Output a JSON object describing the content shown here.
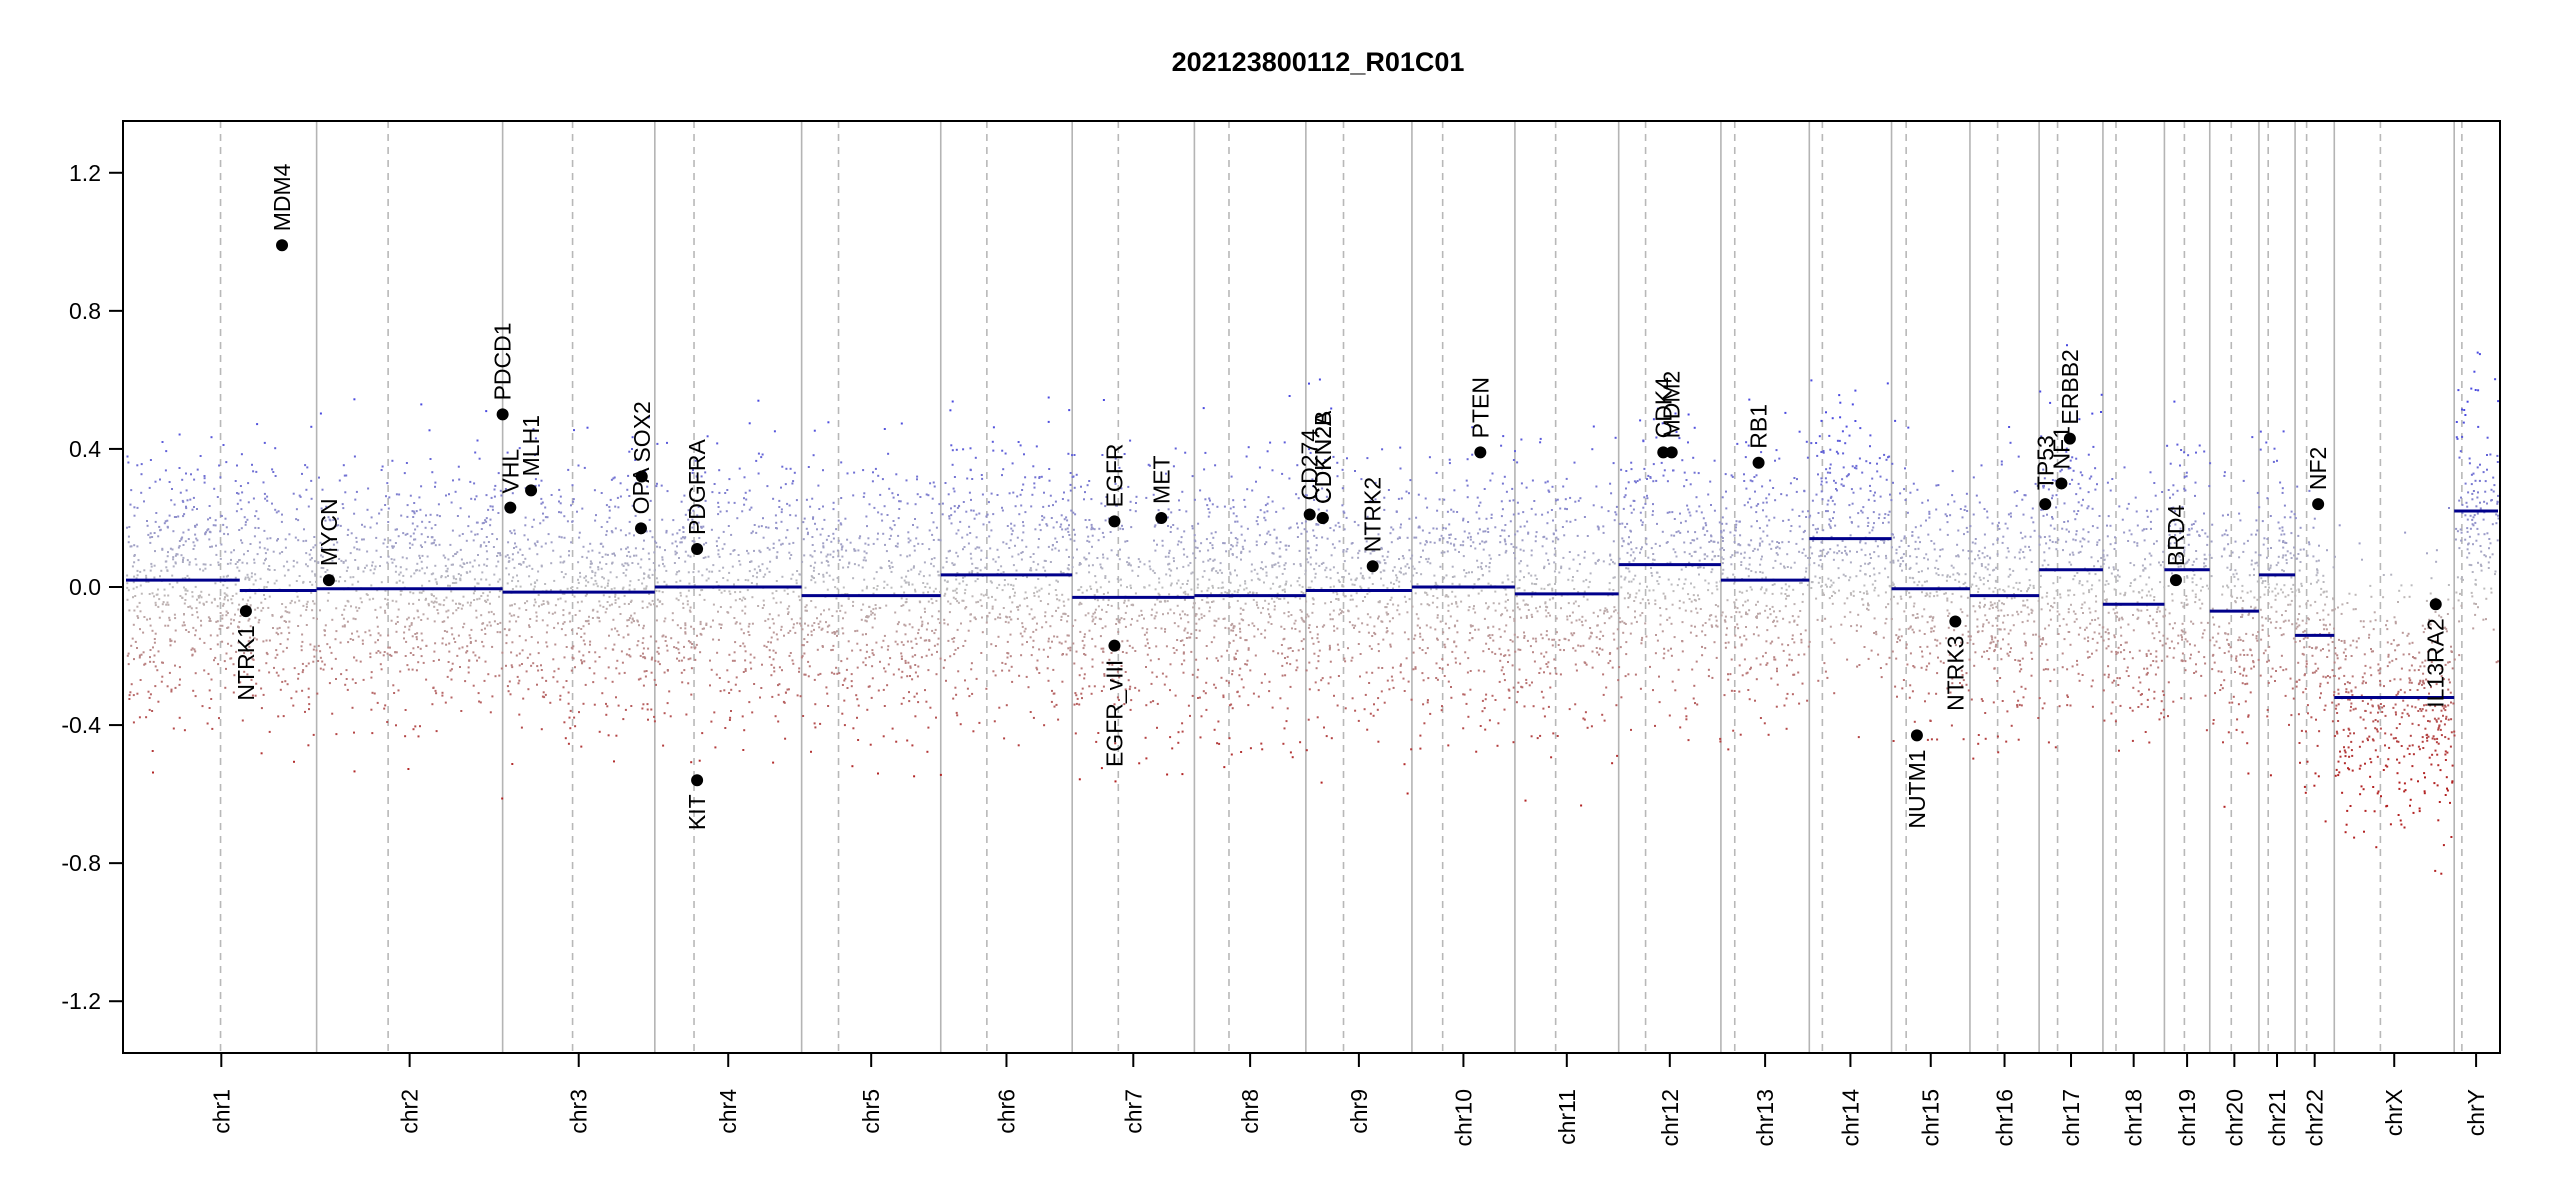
{
  "chart_data": {
    "type": "scatter",
    "title": "202123800112_R01C01",
    "xlabel": "",
    "ylabel": "",
    "ylim": [
      -1.35,
      1.35
    ],
    "yticks": [
      -1.2,
      -0.8,
      -0.4,
      0.0,
      0.4,
      0.8,
      1.2
    ],
    "ytick_labels": [
      "-1.2",
      "-0.8",
      "-0.4",
      "0.0",
      "0.4",
      "0.8",
      "1.2"
    ],
    "grid": false,
    "legend": "none",
    "colors": {
      "segment": "#00008b",
      "high": "#4a4adf",
      "low": "#b22222",
      "neutral": "#bdbdbd",
      "separator": "#b4b4b4",
      "centromere": "#b8b8b8"
    },
    "chromosomes": [
      {
        "name": "chr1",
        "start": 0,
        "end": 248,
        "centromere": 123
      },
      {
        "name": "chr2",
        "start": 248,
        "end": 490,
        "centromere": 93
      },
      {
        "name": "chr3",
        "start": 490,
        "end": 688,
        "centromere": 91
      },
      {
        "name": "chr4",
        "start": 688,
        "end": 879,
        "centromere": 51
      },
      {
        "name": "chr5",
        "start": 879,
        "end": 1060,
        "centromere": 48
      },
      {
        "name": "chr6",
        "start": 1060,
        "end": 1231,
        "centromere": 60
      },
      {
        "name": "chr7",
        "start": 1231,
        "end": 1390,
        "centromere": 60
      },
      {
        "name": "chr8",
        "start": 1390,
        "end": 1535,
        "centromere": 45
      },
      {
        "name": "chr9",
        "start": 1535,
        "end": 1673,
        "centromere": 49
      },
      {
        "name": "chr10",
        "start": 1673,
        "end": 1807,
        "centromere": 40
      },
      {
        "name": "chr11",
        "start": 1807,
        "end": 1942,
        "centromere": 53
      },
      {
        "name": "chr12",
        "start": 1942,
        "end": 2075,
        "centromere": 35
      },
      {
        "name": "chr13",
        "start": 2075,
        "end": 2190,
        "centromere": 18
      },
      {
        "name": "chr14",
        "start": 2190,
        "end": 2297,
        "centromere": 17
      },
      {
        "name": "chr15",
        "start": 2297,
        "end": 2399,
        "centromere": 19
      },
      {
        "name": "chr16",
        "start": 2399,
        "end": 2489,
        "centromere": 36
      },
      {
        "name": "chr17",
        "start": 2489,
        "end": 2572,
        "centromere": 24
      },
      {
        "name": "chr18",
        "start": 2572,
        "end": 2652,
        "centromere": 17
      },
      {
        "name": "chr19",
        "start": 2652,
        "end": 2711,
        "centromere": 26
      },
      {
        "name": "chr20",
        "start": 2711,
        "end": 2775,
        "centromere": 28
      },
      {
        "name": "chr21",
        "start": 2775,
        "end": 2822,
        "centromere": 12
      },
      {
        "name": "chr22",
        "start": 2822,
        "end": 2873,
        "centromere": 15
      },
      {
        "name": "chrX",
        "start": 2873,
        "end": 3029,
        "centromere": 60
      },
      {
        "name": "chrY",
        "start": 3029,
        "end": 3086,
        "centromere": 10
      }
    ],
    "segments": [
      {
        "x0": 0,
        "x1": 148,
        "y": 0.02
      },
      {
        "x0": 148,
        "x1": 248,
        "y": -0.01
      },
      {
        "x0": 248,
        "x1": 490,
        "y": -0.005
      },
      {
        "x0": 490,
        "x1": 688,
        "y": -0.015
      },
      {
        "x0": 688,
        "x1": 879,
        "y": 0.0
      },
      {
        "x0": 879,
        "x1": 1060,
        "y": -0.025
      },
      {
        "x0": 1060,
        "x1": 1231,
        "y": 0.035
      },
      {
        "x0": 1231,
        "x1": 1390,
        "y": -0.03
      },
      {
        "x0": 1390,
        "x1": 1535,
        "y": -0.025
      },
      {
        "x0": 1535,
        "x1": 1673,
        "y": -0.01
      },
      {
        "x0": 1673,
        "x1": 1807,
        "y": 0.0
      },
      {
        "x0": 1807,
        "x1": 1942,
        "y": -0.02
      },
      {
        "x0": 1942,
        "x1": 2075,
        "y": 0.065
      },
      {
        "x0": 2075,
        "x1": 2190,
        "y": 0.02
      },
      {
        "x0": 2190,
        "x1": 2297,
        "y": 0.14
      },
      {
        "x0": 2297,
        "x1": 2399,
        "y": -0.005
      },
      {
        "x0": 2399,
        "x1": 2489,
        "y": -0.025
      },
      {
        "x0": 2489,
        "x1": 2572,
        "y": 0.05
      },
      {
        "x0": 2572,
        "x1": 2652,
        "y": -0.05
      },
      {
        "x0": 2652,
        "x1": 2711,
        "y": 0.05
      },
      {
        "x0": 2711,
        "x1": 2775,
        "y": -0.07
      },
      {
        "x0": 2775,
        "x1": 2822,
        "y": 0.035
      },
      {
        "x0": 2822,
        "x1": 2873,
        "y": -0.14
      },
      {
        "x0": 2873,
        "x1": 3029,
        "y": -0.32
      },
      {
        "x0": 3029,
        "x1": 3086,
        "y": 0.22
      }
    ],
    "genes": [
      {
        "name": "NTRK1",
        "x": 156,
        "y": -0.07,
        "dir": "down"
      },
      {
        "name": "MDM4",
        "x": 203,
        "y": 0.99,
        "dir": "up"
      },
      {
        "name": "MYCN",
        "x": 264,
        "y": 0.02,
        "dir": "up"
      },
      {
        "name": "PDCD1",
        "x": 490,
        "y": 0.5,
        "dir": "up"
      },
      {
        "name": "VHL",
        "x": 500,
        "y": 0.23,
        "dir": "up"
      },
      {
        "name": "MLH1",
        "x": 527,
        "y": 0.28,
        "dir": "up"
      },
      {
        "name": "SOX2",
        "x": 671,
        "y": 0.32,
        "dir": "up"
      },
      {
        "name": "OPA",
        "x": 670,
        "y": 0.17,
        "dir": "up"
      },
      {
        "name": "PDGFRA",
        "x": 743,
        "y": 0.11,
        "dir": "up"
      },
      {
        "name": "KIT",
        "x": 743,
        "y": -0.56,
        "dir": "down"
      },
      {
        "name": "EGFR",
        "x": 1286,
        "y": 0.19,
        "dir": "up"
      },
      {
        "name": "EGFR_vIII",
        "x": 1286,
        "y": -0.17,
        "dir": "down"
      },
      {
        "name": "MET",
        "x": 1347,
        "y": 0.2,
        "dir": "up"
      },
      {
        "name": "CD274",
        "x": 1540,
        "y": 0.21,
        "dir": "up"
      },
      {
        "name": "CDKN2B",
        "x": 1557,
        "y": 0.2,
        "dir": "up"
      },
      {
        "name": "CDKN2A",
        "x": 1557,
        "y": 0.2,
        "dir": "up"
      },
      {
        "name": "NTRK2",
        "x": 1622,
        "y": 0.06,
        "dir": "up"
      },
      {
        "name": "PTEN",
        "x": 1762,
        "y": 0.39,
        "dir": "up"
      },
      {
        "name": "CDK4",
        "x": 2000,
        "y": 0.39,
        "dir": "up"
      },
      {
        "name": "MDM2",
        "x": 2011,
        "y": 0.39,
        "dir": "up"
      },
      {
        "name": "RB1",
        "x": 2124,
        "y": 0.36,
        "dir": "up"
      },
      {
        "name": "NUTM1",
        "x": 2330,
        "y": -0.43,
        "dir": "down"
      },
      {
        "name": "NTRK3",
        "x": 2380,
        "y": -0.1,
        "dir": "down"
      },
      {
        "name": "TP53",
        "x": 2497,
        "y": 0.24,
        "dir": "up"
      },
      {
        "name": "NF1",
        "x": 2518,
        "y": 0.3,
        "dir": "up"
      },
      {
        "name": "ERBB2",
        "x": 2529,
        "y": 0.43,
        "dir": "up"
      },
      {
        "name": "BRD4",
        "x": 2667,
        "y": 0.02,
        "dir": "up"
      },
      {
        "name": "NF2",
        "x": 2852,
        "y": 0.24,
        "dir": "up"
      },
      {
        "name": "IL13RA2",
        "x": 3005,
        "y": -0.05,
        "dir": "down"
      }
    ]
  }
}
